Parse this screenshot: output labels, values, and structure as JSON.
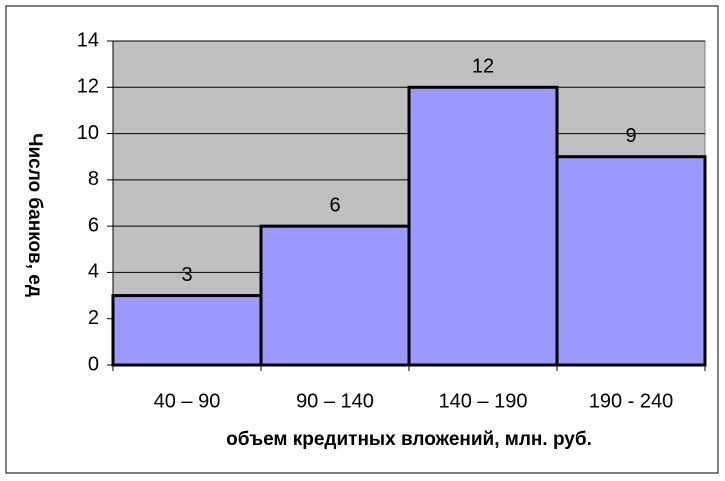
{
  "chart_data": {
    "type": "bar",
    "xlabel": "объем кредитных вложений, млн. руб.",
    "ylabel": "Число банков, ед",
    "categories": [
      "40 – 90",
      "90 – 140",
      "140 – 190",
      "190 - 240"
    ],
    "values": [
      3,
      6,
      12,
      9
    ],
    "color": "#9999ff",
    "ylim": [
      0,
      14
    ],
    "yticks": [
      0,
      2,
      4,
      6,
      8,
      10,
      12,
      14
    ],
    "grid": true
  }
}
